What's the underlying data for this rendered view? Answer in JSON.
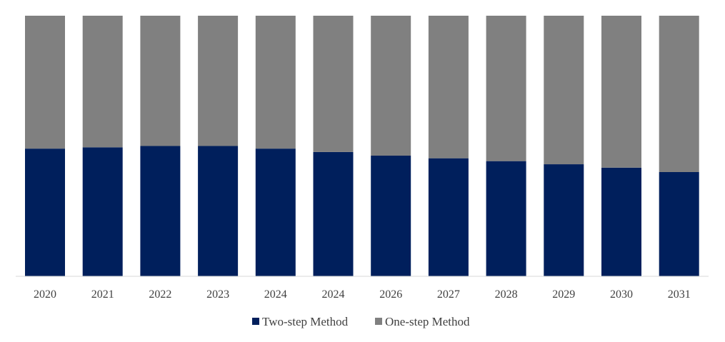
{
  "chart_data": {
    "type": "bar",
    "stacked": true,
    "normalized": true,
    "categories": [
      "2020",
      "2021",
      "2022",
      "2023",
      "2024",
      "2024",
      "2026",
      "2027",
      "2028",
      "2029",
      "2030",
      "2031"
    ],
    "series": [
      {
        "name": "Two-step Method",
        "color": "#001F5C",
        "values": [
          0.49,
          0.495,
          0.5,
          0.5,
          0.49,
          0.477,
          0.463,
          0.453,
          0.442,
          0.43,
          0.417,
          0.4
        ]
      },
      {
        "name": "One-step Method",
        "color": "#808080",
        "values": [
          0.51,
          0.505,
          0.5,
          0.5,
          0.51,
          0.523,
          0.537,
          0.547,
          0.558,
          0.57,
          0.583,
          0.6
        ]
      }
    ],
    "ylim": [
      0,
      1
    ],
    "grid": false,
    "legend_position": "bottom-center",
    "axis_color": "#D9D9D9"
  }
}
